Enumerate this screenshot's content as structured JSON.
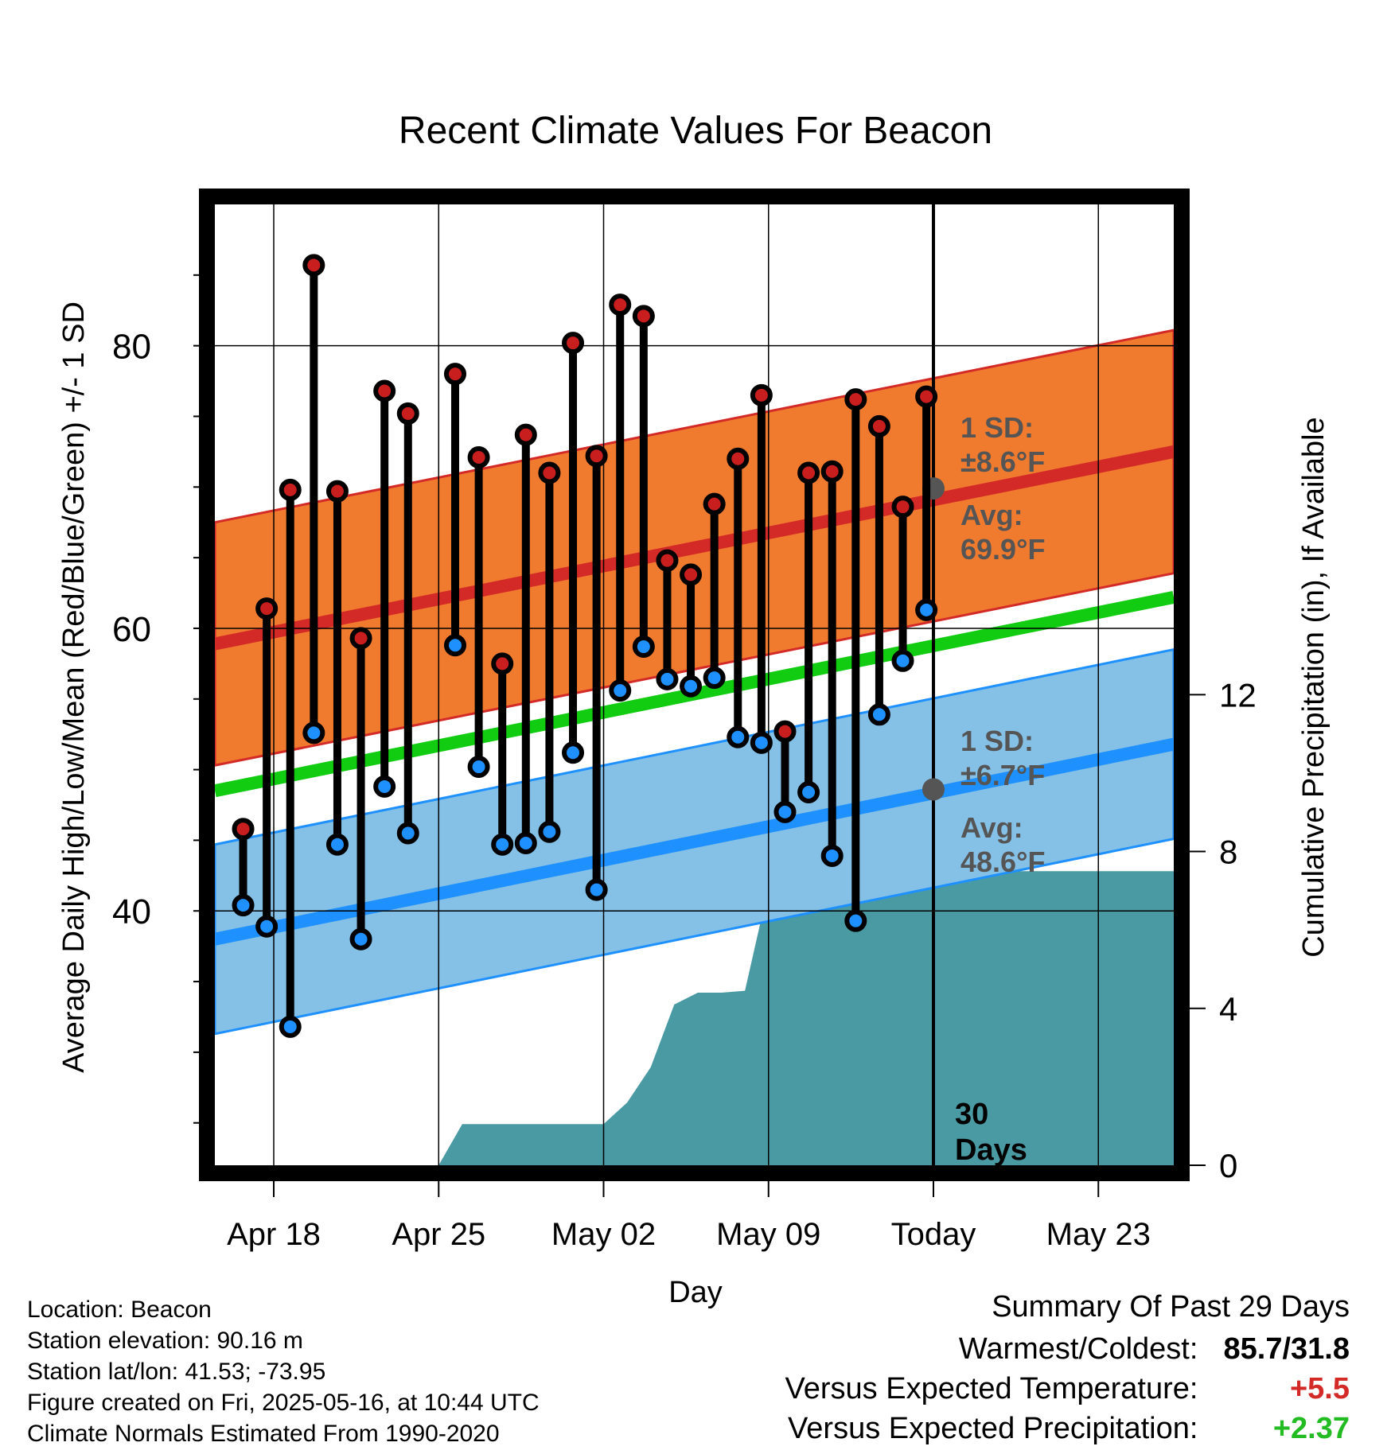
{
  "chart_data": {
    "type": "line",
    "title": "Recent Climate Values For Beacon",
    "xlabel": "Day",
    "ylabel": "Average Daily High/Low/Mean (Red/Blue/Green) +/- 1 SD",
    "y2label": "Cumulative Precipitation (in), If Available",
    "x_tick_labels": [
      "Apr 18",
      "Apr 25",
      "May 02",
      "May 09",
      "Today",
      "May 23"
    ],
    "x_tick_days": [
      2,
      9,
      16,
      23,
      30,
      37
    ],
    "x_range": [
      -0.5,
      40.2
    ],
    "ylim": [
      22,
      90
    ],
    "y_ticks": [
      40,
      60,
      80
    ],
    "y2lim": [
      0,
      24.5
    ],
    "y2_ticks": [
      0,
      4,
      8,
      12
    ],
    "grid": true,
    "today_marker": {
      "label_line1": "30",
      "label_line2": "Days"
    },
    "colors": {
      "high_dot": "#c81e1e",
      "low_dot": "#1e90ff",
      "high_band": "#f07b2e",
      "high_line": "#d42a27",
      "low_band": "#85c1e7",
      "low_line": "#1e90ff",
      "mean_line": "#11cc11",
      "precip": "#4a9aa4",
      "annotation": "#555555",
      "positive_temp": "#d42a27",
      "positive_precip": "#22bb22"
    },
    "normals": {
      "high_mean_start": 58.9,
      "high_mean_end": 72.5,
      "high_sd": 8.6,
      "low_mean_start": 38.0,
      "low_mean_end": 51.8,
      "low_sd": 6.7,
      "mean_start": 48.5,
      "mean_end": 62.2
    },
    "annotations": {
      "high_sd_label": "1 SD:",
      "high_sd_value": "±8.6°F",
      "high_avg_label": "Avg:",
      "high_avg_value": "69.9°F",
      "low_sd_label": "1 SD:",
      "low_sd_value": "±6.7°F",
      "low_avg_label": "Avg:",
      "low_avg_value": "48.6°F",
      "high_avg": 69.9,
      "low_avg": 48.6
    },
    "series": [
      {
        "name": "High",
        "x": [
          0.7,
          1.7,
          2.7,
          3.7,
          4.7,
          5.7,
          6.7,
          7.7,
          9.7,
          10.7,
          11.7,
          12.7,
          13.7,
          14.7,
          15.7,
          16.7,
          17.7,
          18.7,
          19.7,
          20.7,
          21.7,
          22.7,
          23.7,
          24.7,
          25.7,
          26.7,
          27.7,
          28.7,
          29.7
        ],
        "values": [
          45.8,
          61.4,
          69.8,
          85.7,
          69.7,
          59.3,
          76.8,
          75.2,
          78.0,
          72.1,
          57.5,
          73.7,
          71.0,
          80.2,
          72.2,
          82.9,
          82.1,
          64.8,
          63.8,
          68.8,
          72.0,
          76.5,
          52.7,
          71.0,
          71.1,
          76.2,
          74.3,
          68.6,
          76.4
        ]
      },
      {
        "name": "Low",
        "x": [
          0.7,
          1.7,
          2.7,
          3.7,
          4.7,
          5.7,
          6.7,
          7.7,
          9.7,
          10.7,
          11.7,
          12.7,
          13.7,
          14.7,
          15.7,
          16.7,
          17.7,
          18.7,
          19.7,
          20.7,
          21.7,
          22.7,
          23.7,
          24.7,
          25.7,
          26.7,
          27.7,
          28.7,
          29.7
        ],
        "values": [
          40.4,
          38.9,
          31.8,
          52.6,
          44.7,
          38.0,
          48.8,
          45.5,
          58.8,
          50.2,
          44.7,
          44.8,
          45.6,
          51.2,
          41.5,
          55.6,
          58.7,
          56.4,
          55.9,
          56.5,
          52.3,
          51.9,
          47.0,
          48.4,
          43.9,
          39.3,
          53.9,
          57.7,
          61.3
        ]
      },
      {
        "name": "Cumulative Precipitation",
        "x": [
          9.0,
          10.0,
          11.0,
          13.0,
          15.0,
          16.0,
          17.0,
          18.0,
          19.0,
          20.0,
          21.0,
          22.0,
          23.0,
          24.0,
          26.0,
          27.0,
          28.0,
          30.0,
          40.2
        ],
        "values": [
          0.0,
          1.05,
          1.05,
          1.05,
          1.05,
          1.05,
          1.6,
          2.5,
          4.1,
          4.4,
          4.4,
          4.45,
          7.1,
          7.2,
          7.2,
          7.2,
          7.5,
          7.5,
          7.5
        ]
      }
    ]
  },
  "location_info": [
    "Location: Beacon",
    "Station elevation: 90.16 m",
    "Station lat/lon: 41.53; -73.95",
    "Figure created on Fri, 2025-05-16, at 10:44 UTC",
    "Climate Normals Estimated From 1990-2020"
  ],
  "summary": {
    "title": "Summary Of Past 29 Days",
    "warmest_coldest_label": "Warmest/Coldest:",
    "warmest_coldest_value": "85.7/31.8",
    "temp_label": "Versus Expected Temperature:",
    "temp_value": "+5.5",
    "precip_label": "Versus Expected Precipitation:",
    "precip_value": "+2.37"
  }
}
